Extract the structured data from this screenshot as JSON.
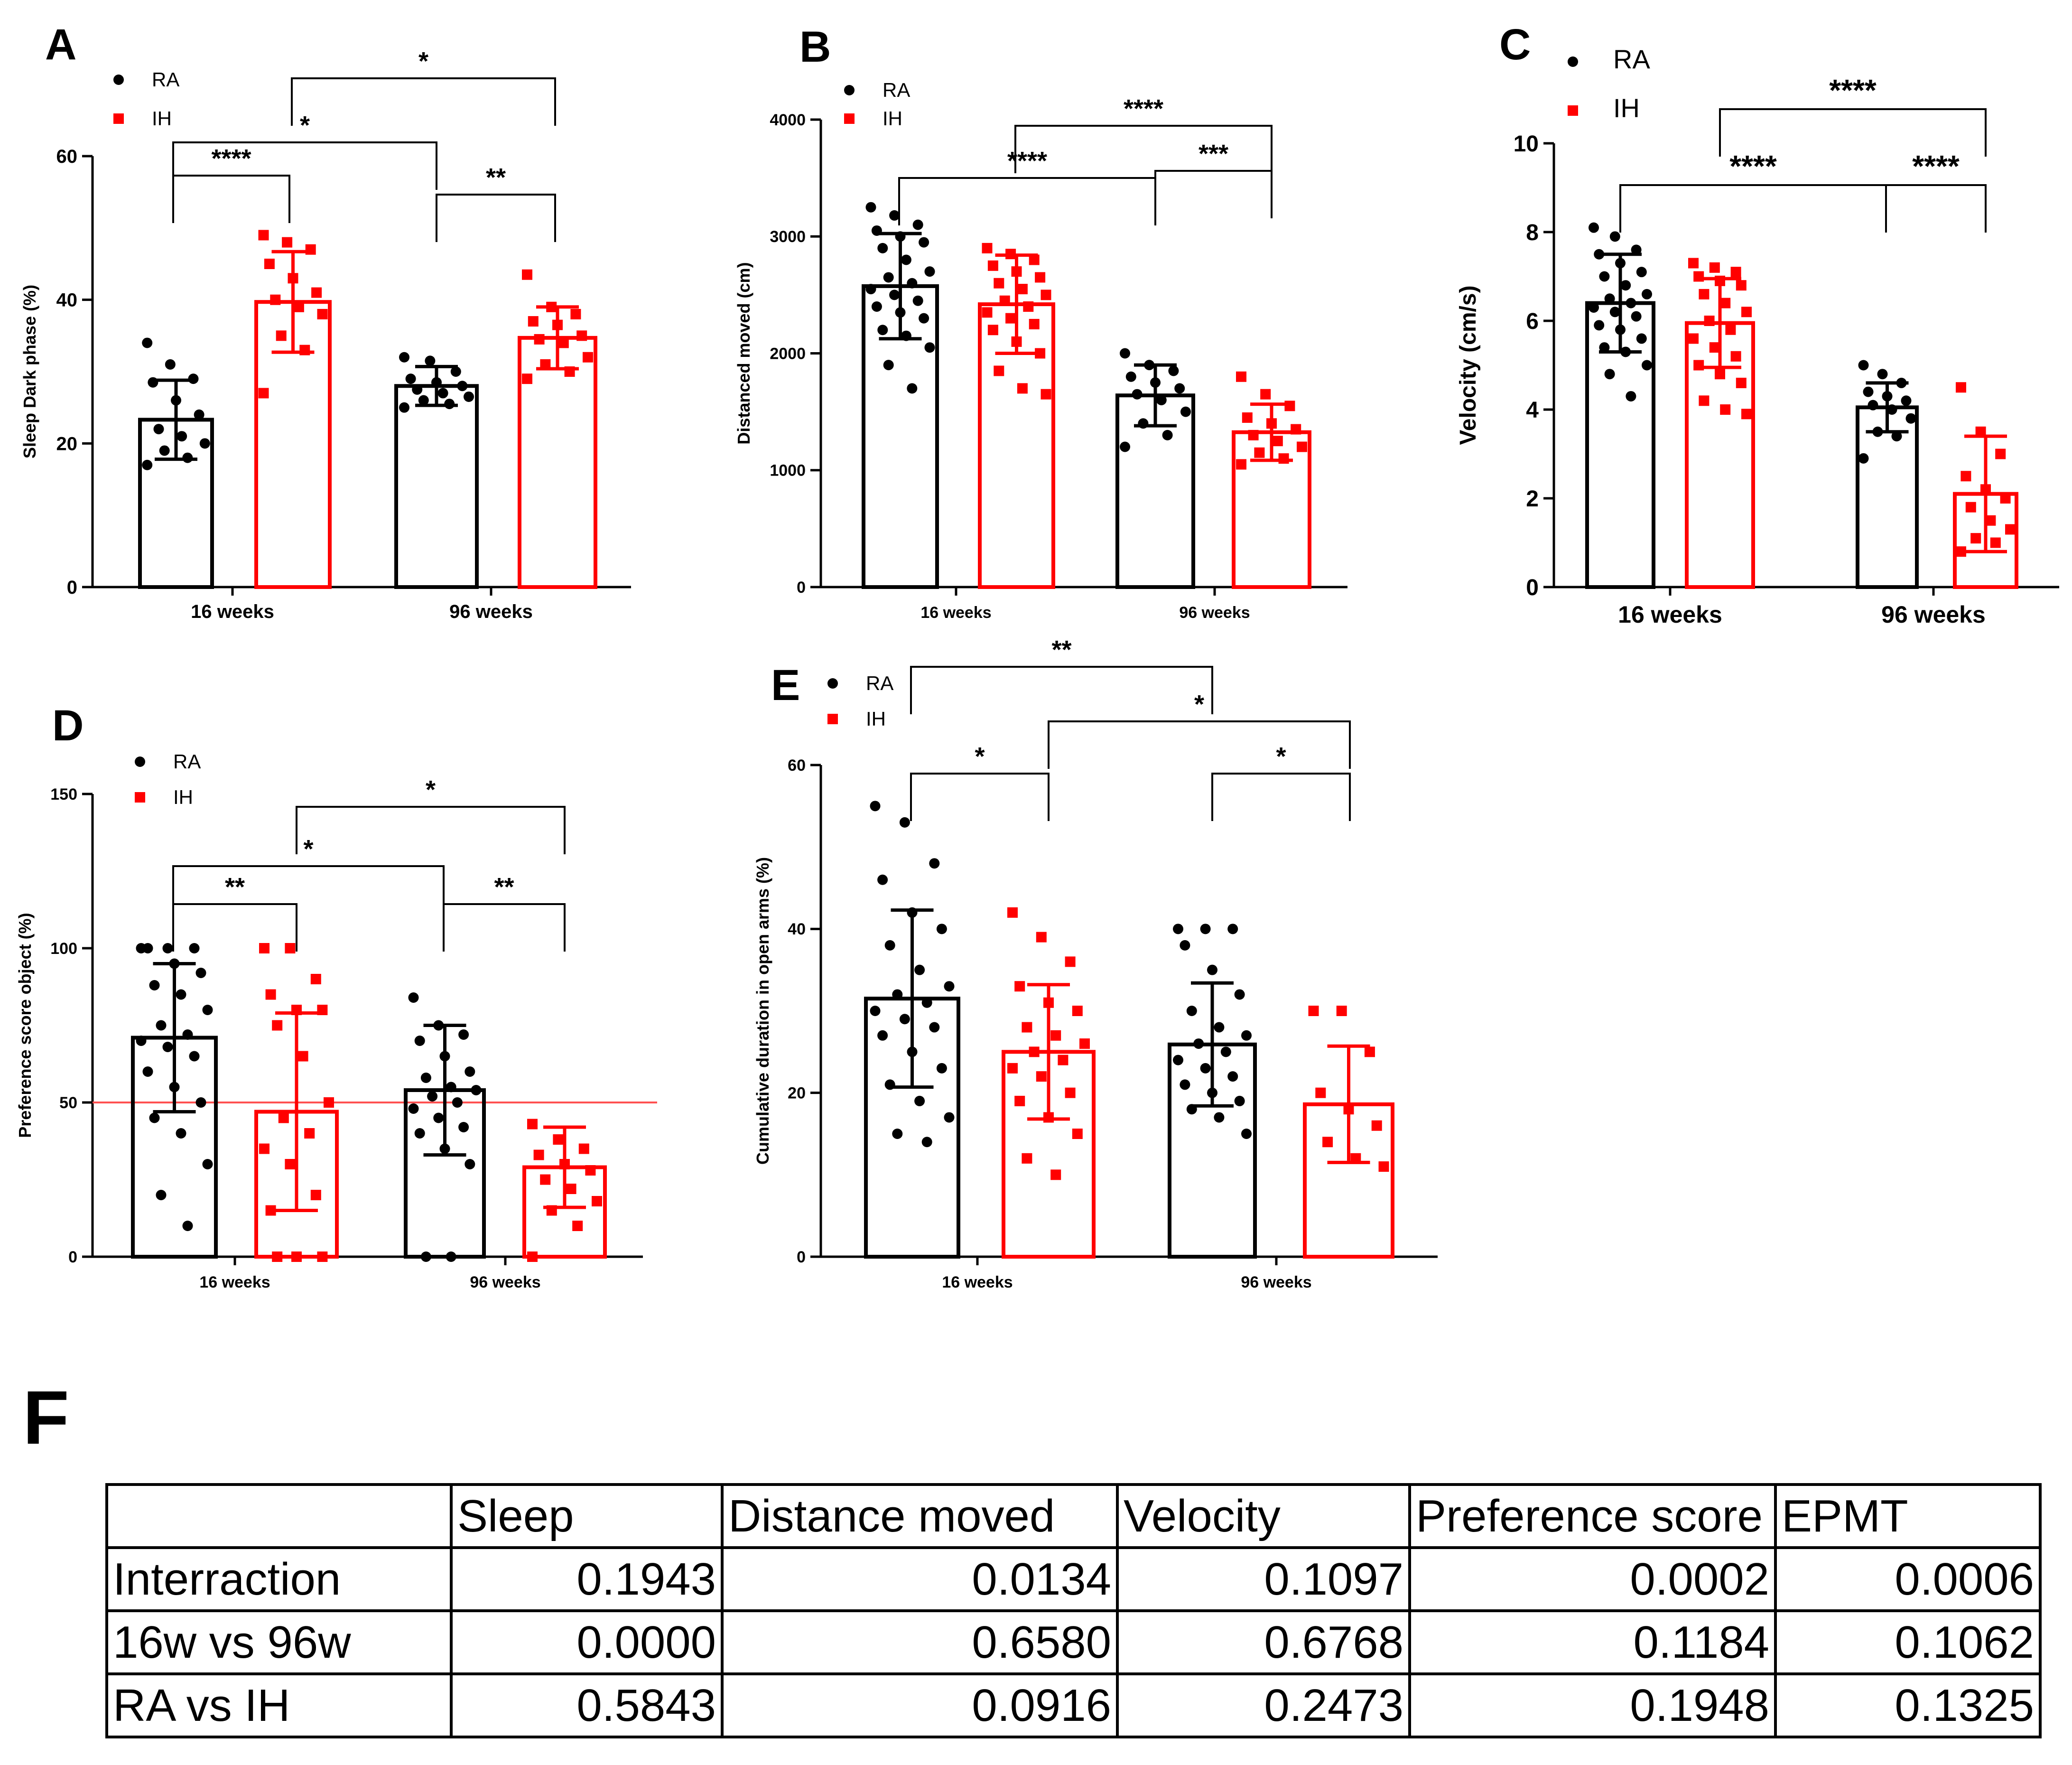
{
  "colors": {
    "ra": "#000000",
    "ih": "#ff0000",
    "ref_line": "#ff5050"
  },
  "chart_data": [
    {
      "id": "A",
      "type": "bar",
      "panel_label": "A",
      "ylabel": "Sleep Dark phase (%)",
      "ylim": [
        0,
        60
      ],
      "yticks": [
        "0",
        "20",
        "40",
        "60"
      ],
      "categories": [
        "16 weeks",
        "96 weeks"
      ],
      "series": [
        {
          "name": "RA",
          "marker": "circle",
          "color": "#000000",
          "mean": [
            23.3,
            28.0
          ],
          "sd": [
            5.5,
            2.7
          ],
          "points": [
            [
              34,
              31,
              29,
              28.5,
              26,
              24,
              22,
              21,
              20,
              19,
              18,
              17
            ],
            [
              32,
              31.5,
              30,
              29,
              28.5,
              28,
              27.5,
              27,
              26.5,
              26,
              25.5,
              25
            ]
          ]
        },
        {
          "name": "IH",
          "marker": "square",
          "color": "#ff0000",
          "mean": [
            39.7,
            34.7
          ],
          "sd": [
            7.0,
            4.3
          ],
          "points": [
            [
              49,
              48,
              47,
              45,
              43,
              41,
              40,
              39,
              38,
              35,
              33,
              27
            ],
            [
              43.5,
              39,
              38,
              37,
              36.5,
              35,
              34.5,
              34,
              32,
              31,
              30,
              29
            ]
          ]
        }
      ],
      "legend": [
        "RA",
        "IH"
      ],
      "significance": [
        {
          "from": [
            0,
            0
          ],
          "to": [
            0,
            1
          ],
          "label": "****"
        },
        {
          "from": [
            0,
            0
          ],
          "to": [
            1,
            0
          ],
          "label": "*"
        },
        {
          "from": [
            0,
            1
          ],
          "to": [
            1,
            1
          ],
          "label": "*"
        },
        {
          "from": [
            1,
            0
          ],
          "to": [
            1,
            1
          ],
          "label": "**"
        }
      ]
    },
    {
      "id": "B",
      "type": "bar",
      "panel_label": "B",
      "ylabel": "Distanced moved (cm)",
      "ylim": [
        0,
        4000
      ],
      "yticks": [
        "0",
        "1000",
        "2000",
        "3000",
        "4000"
      ],
      "categories": [
        "16 weeks",
        "96 weeks"
      ],
      "series": [
        {
          "name": "RA",
          "marker": "circle",
          "color": "#000000",
          "mean": [
            2575,
            1640
          ],
          "sd": [
            450,
            260
          ],
          "points": [
            [
              3250,
              3180,
              3100,
              3050,
              3000,
              2950,
              2900,
              2800,
              2700,
              2650,
              2600,
              2550,
              2500,
              2450,
              2400,
              2350,
              2300,
              2200,
              2150,
              2050,
              1900,
              1700
            ],
            [
              2000,
              1900,
              1850,
              1800,
              1750,
              1700,
              1650,
              1600,
              1500,
              1400,
              1300,
              1200
            ]
          ]
        },
        {
          "name": "IH",
          "marker": "square",
          "color": "#ff0000",
          "mean": [
            2420,
            1325
          ],
          "sd": [
            420,
            240
          ],
          "points": [
            [
              2900,
              2850,
              2800,
              2750,
              2700,
              2650,
              2600,
              2550,
              2500,
              2450,
              2400,
              2350,
              2300,
              2250,
              2200,
              2100,
              2000,
              1850,
              1700,
              1650
            ],
            [
              1800,
              1650,
              1550,
              1450,
              1400,
              1350,
              1300,
              1250,
              1200,
              1150,
              1100,
              1050
            ]
          ]
        }
      ],
      "legend": [
        "RA",
        "IH"
      ],
      "significance": [
        {
          "from": [
            0,
            1
          ],
          "to": [
            1,
            1
          ],
          "label": "****"
        },
        {
          "from": [
            0,
            0
          ],
          "to": [
            1,
            0
          ],
          "label": "****"
        },
        {
          "from": [
            1,
            0
          ],
          "to": [
            1,
            1
          ],
          "label": "***"
        }
      ]
    },
    {
      "id": "C",
      "type": "bar",
      "panel_label": "C",
      "ylabel": "Velocity  (cm/s)",
      "ylim": [
        0,
        10
      ],
      "yticks": [
        "0",
        "2",
        "4",
        "6",
        "8",
        "10"
      ],
      "categories": [
        "16 weeks",
        "96 weeks"
      ],
      "series": [
        {
          "name": "RA",
          "marker": "circle",
          "color": "#000000",
          "mean": [
            6.4,
            4.05
          ],
          "sd": [
            1.1,
            0.55
          ],
          "points": [
            [
              8.1,
              7.9,
              7.6,
              7.5,
              7.3,
              7.1,
              7.0,
              6.8,
              6.6,
              6.5,
              6.4,
              6.3,
              6.2,
              6.1,
              5.9,
              5.8,
              5.6,
              5.4,
              5.3,
              5.0,
              4.8,
              4.3
            ],
            [
              5.0,
              4.8,
              4.6,
              4.4,
              4.3,
              4.2,
              4.1,
              4.0,
              3.8,
              3.5,
              3.4,
              2.9
            ]
          ]
        },
        {
          "name": "IH",
          "marker": "square",
          "color": "#ff0000",
          "mean": [
            5.95,
            2.1
          ],
          "sd": [
            1.0,
            1.3
          ],
          "points": [
            [
              7.3,
              7.2,
              7.1,
              7.0,
              6.9,
              6.8,
              6.6,
              6.4,
              6.2,
              6.0,
              5.8,
              5.6,
              5.4,
              5.2,
              5.0,
              4.8,
              4.6,
              4.2,
              4.0,
              3.9
            ],
            [
              4.5,
              3.5,
              3.0,
              2.5,
              2.2,
              2.0,
              1.8,
              1.5,
              1.3,
              1.1,
              1.0,
              0.8
            ]
          ]
        }
      ],
      "legend": [
        "RA",
        "IH"
      ],
      "significance": [
        {
          "from": [
            0,
            1
          ],
          "to": [
            1,
            1
          ],
          "label": "****"
        },
        {
          "from": [
            0,
            0
          ],
          "to": [
            1,
            0
          ],
          "label": "****"
        },
        {
          "from": [
            1,
            0
          ],
          "to": [
            1,
            1
          ],
          "label": "****"
        }
      ]
    },
    {
      "id": "D",
      "type": "bar",
      "panel_label": "D",
      "ylabel": "Preference score object (%)",
      "ylim": [
        0,
        150
      ],
      "yticks": [
        "0",
        "50",
        "100",
        "150"
      ],
      "reference_line": 50,
      "categories": [
        "16 weeks",
        "96 weeks"
      ],
      "series": [
        {
          "name": "RA",
          "marker": "circle",
          "color": "#000000",
          "mean": [
            71,
            54
          ],
          "sd": [
            24,
            21
          ],
          "points": [
            [
              100,
              100,
              100,
              100,
              95,
              92,
              88,
              85,
              80,
              75,
              72,
              70,
              68,
              65,
              60,
              55,
              50,
              45,
              40,
              30,
              20,
              10
            ],
            [
              84,
              75,
              72,
              70,
              65,
              60,
              58,
              55,
              54,
              52,
              50,
              48,
              45,
              42,
              40,
              35,
              30,
              0,
              0
            ]
          ]
        },
        {
          "name": "IH",
          "marker": "square",
          "color": "#ff0000",
          "mean": [
            47,
            29
          ],
          "sd": [
            32,
            13
          ],
          "points": [
            [
              100,
              100,
              90,
              85,
              80,
              80,
              75,
              65,
              50,
              45,
              40,
              35,
              30,
              20,
              15,
              0,
              0,
              0
            ],
            [
              43,
              38,
              35,
              33,
              30,
              28,
              25,
              22,
              18,
              15,
              10,
              0
            ]
          ]
        }
      ],
      "legend": [
        "RA",
        "IH"
      ],
      "significance": [
        {
          "from": [
            0,
            0
          ],
          "to": [
            0,
            1
          ],
          "label": "**"
        },
        {
          "from": [
            0,
            0
          ],
          "to": [
            1,
            0
          ],
          "label": "*"
        },
        {
          "from": [
            0,
            1
          ],
          "to": [
            1,
            1
          ],
          "label": "*"
        },
        {
          "from": [
            1,
            0
          ],
          "to": [
            1,
            1
          ],
          "label": "**"
        }
      ]
    },
    {
      "id": "E",
      "type": "bar",
      "panel_label": "E",
      "ylabel": "Cumulative duration in open arms (%)",
      "ylim": [
        0,
        60
      ],
      "yticks": [
        "0",
        "20",
        "40",
        "60"
      ],
      "categories": [
        "16 weeks",
        "96 weeks"
      ],
      "series": [
        {
          "name": "RA",
          "marker": "circle",
          "color": "#000000",
          "mean": [
            31.5,
            25.9
          ],
          "sd": [
            10.8,
            7.5
          ],
          "points": [
            [
              55,
              53,
              48,
              46,
              42,
              40,
              38,
              35,
              33,
              32,
              31,
              30,
              29,
              28,
              27,
              25,
              23,
              21,
              19,
              17,
              15,
              14
            ],
            [
              40,
              40,
              40,
              38,
              35,
              32,
              30,
              28,
              27,
              26,
              25,
              24,
              23,
              22,
              21,
              20,
              19,
              18,
              17,
              15
            ]
          ]
        },
        {
          "name": "IH",
          "marker": "square",
          "color": "#ff0000",
          "mean": [
            25.0,
            18.6
          ],
          "sd": [
            8.2,
            7.1
          ],
          "points": [
            [
              42,
              39,
              36,
              33,
              31,
              30,
              28,
              27,
              26,
              25,
              24,
              23,
              22,
              20,
              19,
              17,
              15,
              12,
              10
            ],
            [
              30,
              30,
              25,
              20,
              18,
              16,
              14,
              12,
              11
            ]
          ]
        }
      ],
      "legend": [
        "RA",
        "IH"
      ],
      "significance": [
        {
          "from": [
            0,
            0
          ],
          "to": [
            1,
            0
          ],
          "label": "**"
        },
        {
          "from": [
            0,
            0
          ],
          "to": [
            0,
            1
          ],
          "label": "*"
        },
        {
          "from": [
            0,
            1
          ],
          "to": [
            1,
            1
          ],
          "label": "*"
        },
        {
          "from": [
            1,
            0
          ],
          "to": [
            1,
            1
          ],
          "label": "*"
        }
      ]
    }
  ],
  "table": {
    "panel_label": "F",
    "headers": [
      "",
      "Sleep",
      "Distance moved",
      "Velocity",
      "Preference score",
      "EPMT"
    ],
    "rows": [
      [
        "Interraction",
        "0.1943",
        "0.0134",
        "0.1097",
        "0.0002",
        "0.0006"
      ],
      [
        "16w vs 96w",
        "0.0000",
        "0.6580",
        "0.6768",
        "0.1184",
        "0.1062"
      ],
      [
        "RA vs IH",
        "0.5843",
        "0.0916",
        "0.2473",
        "0.1948",
        "0.1325"
      ]
    ]
  }
}
